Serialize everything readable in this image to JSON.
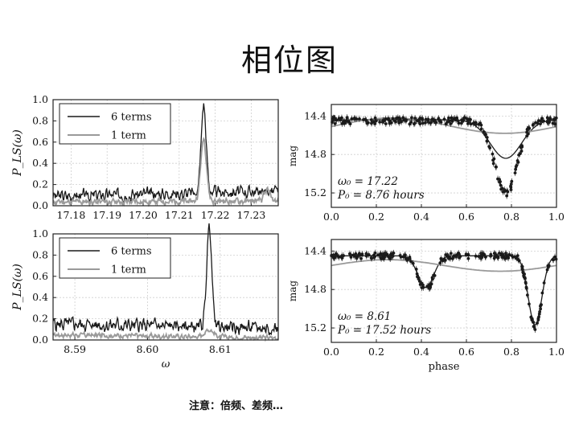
{
  "slide": {
    "title": "相位图",
    "footnote": "注意：倍频、差频…"
  },
  "colors": {
    "dark": "#1a1a1a",
    "light": "#9a9a9a",
    "axis": "#222222"
  },
  "chart_data": [
    {
      "type": "line",
      "name": "periodogram-top",
      "ylabel": "P_LS(ω)",
      "xlim": [
        17.175,
        17.2375
      ],
      "ylim": [
        0,
        1.0
      ],
      "xticks": [
        "17.18",
        "17.19",
        "17.20",
        "17.21",
        "17.22",
        "17.23"
      ],
      "xtick_values": [
        17.18,
        17.19,
        17.2,
        17.21,
        17.22,
        17.23
      ],
      "yticks": [
        "0.0",
        "0.2",
        "0.4",
        "0.6",
        "0.8",
        "1.0"
      ],
      "ytick_values": [
        0,
        0.2,
        0.4,
        0.6,
        0.8,
        1.0
      ],
      "legend": {
        "position": "top-left",
        "entries": [
          "6 terms",
          "1 term"
        ]
      },
      "series": [
        {
          "name": "6 terms",
          "color": "dark",
          "peak": {
            "x": 17.2168,
            "height": 0.82,
            "halfwidth": 0.0007
          },
          "noise": {
            "base": 0.09,
            "amp": 0.035,
            "trend": 0.05,
            "seed": 3
          }
        },
        {
          "name": "1 term",
          "color": "light",
          "peak": {
            "x": 17.2168,
            "height": 0.59,
            "halfwidth": 0.0008
          },
          "noise": {
            "base": 0.035,
            "amp": 0.02,
            "trend": 0.01,
            "seed": 11
          },
          "bump": {
            "x": 17.2345,
            "height": 0.1,
            "halfwidth": 0.0008
          }
        }
      ]
    },
    {
      "type": "scatter",
      "name": "phase-top",
      "ylabel": "mag",
      "xlim": [
        0,
        1.0
      ],
      "ylim": [
        15.35,
        14.28
      ],
      "xticks": [
        "0.0",
        "0.2",
        "0.4",
        "0.6",
        "0.8",
        "1.0"
      ],
      "xtick_values": [
        0,
        0.2,
        0.4,
        0.6,
        0.8,
        1.0
      ],
      "yticks": [
        "14.4",
        "14.8",
        "15.2"
      ],
      "ytick_values": [
        14.4,
        14.8,
        15.2
      ],
      "annotation": [
        "ω₀ = 17.22",
        "P₀ = 8.76 hours"
      ],
      "points_model": {
        "base": 14.45,
        "dip_center": 0.775,
        "dip_depth": 0.75,
        "dip_width": 0.05,
        "scatter": 0.035,
        "count": 220
      },
      "fit_curves": [
        {
          "color": "dark",
          "base": 14.44,
          "dip_center": 0.775,
          "dip_depth": 0.4,
          "dip_width": 0.07
        },
        {
          "color": "light",
          "base": 14.5,
          "amp": 0.08,
          "shape": "sine",
          "min_phase": 0.77
        }
      ]
    },
    {
      "type": "line",
      "name": "periodogram-bottom",
      "ylabel": "P_LS(ω)",
      "xlabel": "ω",
      "xlim": [
        8.587,
        8.618
      ],
      "ylim": [
        0,
        1.0
      ],
      "xticks": [
        "8.59",
        "8.60",
        "8.61"
      ],
      "xtick_values": [
        8.59,
        8.6,
        8.61
      ],
      "yticks": [
        "0.0",
        "0.2",
        "0.4",
        "0.6",
        "0.8",
        "1.0"
      ],
      "ytick_values": [
        0,
        0.2,
        0.4,
        0.6,
        0.8,
        1.0
      ],
      "legend": {
        "position": "top-left",
        "entries": [
          "6 terms",
          "1 term"
        ]
      },
      "series": [
        {
          "name": "6 terms",
          "color": "dark",
          "peak": {
            "x": 8.6085,
            "height": 0.95,
            "halfwidth": 0.00035
          },
          "noise": {
            "base": 0.15,
            "amp": 0.04,
            "trend": -0.04,
            "seed": 5
          }
        },
        {
          "name": "1 term",
          "color": "light",
          "peak": {
            "x": 8.6085,
            "height": 0.07,
            "halfwidth": 0.0006
          },
          "noise": {
            "base": 0.05,
            "amp": 0.015,
            "trend": -0.03,
            "seed": 17
          }
        }
      ]
    },
    {
      "type": "scatter",
      "name": "phase-bottom",
      "ylabel": "mag",
      "xlabel": "phase",
      "xlim": [
        0,
        1.0
      ],
      "ylim": [
        15.35,
        14.28
      ],
      "xticks": [
        "0.0",
        "0.2",
        "0.4",
        "0.6",
        "0.8",
        "1.0"
      ],
      "xtick_values": [
        0,
        0.2,
        0.4,
        0.6,
        0.8,
        1.0
      ],
      "yticks": [
        "14.4",
        "14.8",
        "15.2"
      ],
      "ytick_values": [
        14.4,
        14.8,
        15.2
      ],
      "annotation": [
        "ω₀ = 8.61",
        "P₀ = 17.52 hours"
      ],
      "points_model": {
        "base": 14.45,
        "dips": [
          {
            "center": 0.42,
            "depth": 0.35,
            "width": 0.035
          },
          {
            "center": 0.905,
            "depth": 0.75,
            "width": 0.03
          }
        ],
        "scatter": 0.03,
        "count": 240
      },
      "fit_curves": [
        {
          "color": "dark",
          "base": 14.45,
          "dips": [
            {
              "center": 0.42,
              "depth": 0.33,
              "width": 0.035
            },
            {
              "center": 0.905,
              "depth": 0.72,
              "width": 0.03
            }
          ]
        },
        {
          "color": "light",
          "base": 14.55,
          "amp": 0.06,
          "shape": "sine",
          "min_phase": 0.75
        }
      ]
    }
  ]
}
